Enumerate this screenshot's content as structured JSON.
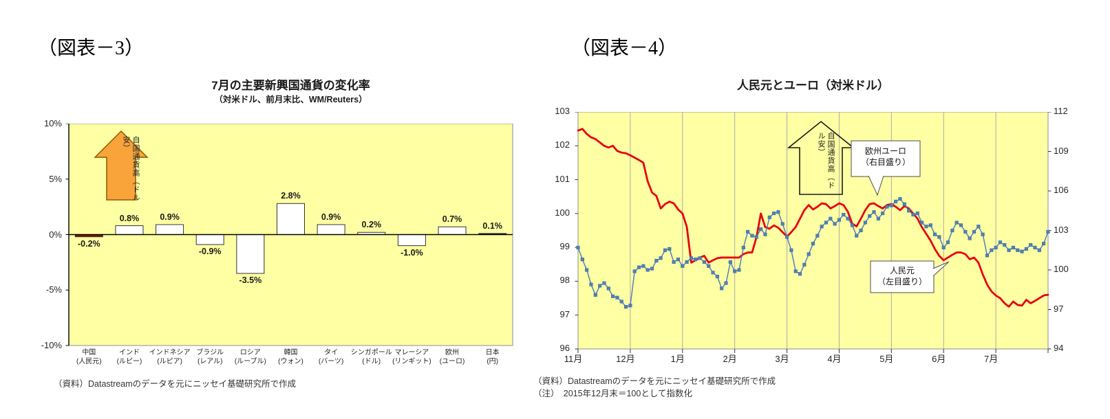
{
  "figure3": {
    "label": "（図表－3）",
    "arrow_main": "自国通貨高",
    "arrow_sub": "（ドル安）",
    "source": "（資料）Datastreamのデータを元にニッセイ基礎研究所で作成"
  },
  "figure4": {
    "label": "（図表－4）",
    "arrow_main": "自国通貨高",
    "arrow_sub": "（ドル安）",
    "callout_euro_line1": "欧州ユーロ",
    "callout_euro_line2": "（右目盛り）",
    "callout_rmb_line1": "人民元",
    "callout_rmb_line2": "（左目盛り）",
    "source": "（資料）Datastreamのデータを元にニッセイ基礎研究所で作成",
    "note": "（注）　2015年12月末＝100として指数化"
  },
  "colors": {
    "plot_bg": "#FFFFA3",
    "plot_border": "#8C8C8C",
    "grid_line": "#ABABAB",
    "red_line": "#E60012",
    "blue_line": "#4F81BD",
    "blue_marker_edge": "#3A6593",
    "bar_border": "#333333",
    "arrow_fill": "#F9A43B",
    "arrow_border": "#8A5A00"
  },
  "chart_data": [
    {
      "type": "bar",
      "title": "7月の主要新興国通貨の変化率",
      "subtitle": "（対米ドル、前月末比、WM/Reuters）",
      "categories": [
        "中国",
        "インド",
        "インドネシア",
        "ブラジル",
        "ロシア",
        "韓国",
        "タイ",
        "シンガポール",
        "マレーシア",
        "欧州",
        "日本"
      ],
      "category_sub": [
        "(人民元)",
        "(ルピー)",
        "(ルピア)",
        "(レアル)",
        "(ルーブル)",
        "(ウォン)",
        "(バーツ)",
        "(ドル)",
        "(リンギット)",
        "(ユーロ)",
        "(円)"
      ],
      "values": [
        -0.2,
        0.8,
        0.9,
        -0.9,
        -3.5,
        2.8,
        0.9,
        0.2,
        -1.0,
        0.7,
        0.1
      ],
      "value_labels": [
        "-0.2%",
        "0.8%",
        "0.9%",
        "-0.9%",
        "-3.5%",
        "2.8%",
        "0.9%",
        "0.2%",
        "-1.0%",
        "0.7%",
        "0.1%"
      ],
      "bar_colors": [
        "#8B1505",
        "#FFFFFF",
        "#FFFFFF",
        "#FFFFFF",
        "#FFFFFF",
        "#FFFFFF",
        "#FFFFFF",
        "#FFFFFF",
        "#FFFFFF",
        "#FFFFFF",
        "#1A1A1A"
      ],
      "y_ticks": [
        "10%",
        "5%",
        "0%",
        "-5%",
        "-10%"
      ],
      "y_tick_values": [
        10,
        5,
        0,
        -5,
        -10
      ],
      "ylim": [
        -10,
        10
      ],
      "grid": false
    },
    {
      "type": "line",
      "title": "人民元とユーロ（対米ドル）",
      "x_ticks": [
        "11月",
        "12月",
        "1月",
        "2月",
        "3月",
        "4月",
        "5月",
        "6月",
        "7月"
      ],
      "left_axis": {
        "min": 96,
        "max": 103,
        "ticks": [
          103,
          102,
          101,
          100,
          99,
          98,
          97,
          96
        ]
      },
      "right_axis": {
        "min": 94,
        "max": 112,
        "ticks": [
          112,
          109,
          106,
          103,
          100,
          97,
          94
        ]
      },
      "grid": "vertical-monthly",
      "series": [
        {
          "name": "人民元（左目盛り）",
          "axis": "left",
          "color": "#E60012",
          "values": [
            102.45,
            102.5,
            102.35,
            102.25,
            102.2,
            102.1,
            102.0,
            101.95,
            102.0,
            101.85,
            101.8,
            101.78,
            101.72,
            101.65,
            101.58,
            101.5,
            100.95,
            100.62,
            100.52,
            100.15,
            100.28,
            100.35,
            100.3,
            100.12,
            100.0,
            99.6,
            98.55,
            98.62,
            98.7,
            98.75,
            98.55,
            98.62,
            98.68,
            98.7,
            98.7,
            98.7,
            98.7,
            98.7,
            98.8,
            98.85,
            98.85,
            99.3,
            100.0,
            99.6,
            99.55,
            99.65,
            99.58,
            99.45,
            99.32,
            99.45,
            99.6,
            99.85,
            100.1,
            100.25,
            100.12,
            100.2,
            100.3,
            100.28,
            100.15,
            100.22,
            100.3,
            100.25,
            100.05,
            99.7,
            99.62,
            99.85,
            100.1,
            100.28,
            100.3,
            100.22,
            100.15,
            100.25,
            100.28,
            100.2,
            100.1,
            100.22,
            100.15,
            100.0,
            99.85,
            99.6,
            99.4,
            99.2,
            98.95,
            98.75,
            98.62,
            98.7,
            98.78,
            98.85,
            98.85,
            98.8,
            98.65,
            98.7,
            98.55,
            98.2,
            97.9,
            97.7,
            97.58,
            97.5,
            97.35,
            97.25,
            97.4,
            97.3,
            97.28,
            97.45,
            97.35,
            97.42,
            97.5,
            97.58,
            97.6
          ]
        },
        {
          "name": "欧州ユーロ（右目盛り）",
          "axis": "right",
          "color": "#4F81BD",
          "marker": "square",
          "values": [
            101.7,
            100.8,
            100.0,
            98.9,
            98.1,
            98.8,
            99.0,
            98.6,
            98.0,
            97.9,
            97.6,
            97.2,
            97.3,
            99.9,
            100.2,
            100.3,
            100.0,
            100.1,
            100.7,
            100.9,
            101.5,
            101.6,
            100.6,
            100.8,
            100.3,
            100.6,
            100.9,
            100.8,
            100.9,
            100.6,
            100.3,
            99.8,
            99.5,
            98.6,
            99.0,
            100.6,
            99.9,
            100.0,
            101.7,
            102.9,
            102.6,
            102.5,
            103.1,
            102.7,
            104.0,
            104.3,
            104.4,
            103.5,
            102.5,
            101.5,
            99.9,
            99.7,
            100.4,
            101.2,
            102.0,
            102.6,
            103.3,
            103.6,
            103.9,
            103.5,
            103.8,
            104.2,
            103.9,
            103.4,
            102.6,
            103.0,
            103.6,
            104.1,
            104.4,
            103.9,
            104.3,
            104.8,
            104.9,
            105.2,
            105.4,
            105.0,
            104.5,
            104.2,
            104.3,
            103.6,
            103.3,
            103.4,
            102.7,
            102.5,
            101.7,
            102.1,
            103.0,
            103.6,
            103.4,
            102.9,
            102.4,
            102.9,
            103.3,
            102.7,
            101.1,
            101.5,
            101.7,
            102.1,
            101.9,
            101.5,
            101.7,
            101.5,
            101.4,
            101.6,
            101.9,
            101.7,
            101.5,
            102.0,
            102.9
          ]
        }
      ],
      "note": "2015年12月末＝100として指数化"
    }
  ]
}
